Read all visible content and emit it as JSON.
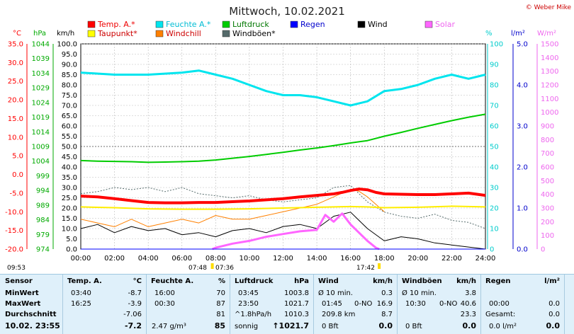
{
  "title": "Mittwoch, 10.02.2021",
  "credit": "© Weber Mike",
  "clock_left": "09:53",
  "sun_marks": {
    "rise": "07:48",
    "rise2": "07:36",
    "set": "17:42"
  },
  "legend": [
    {
      "label": "Temp. A.*",
      "color": "#ff0000"
    },
    {
      "label": "Feuchte A.*",
      "color": "#00e5ee"
    },
    {
      "label": "Luftdruck",
      "color": "#00cc00"
    },
    {
      "label": "Regen",
      "color": "#0000ff"
    },
    {
      "label": "Wind",
      "color": "#000000"
    },
    {
      "label": "Solar",
      "color": "#ff66ff"
    },
    {
      "label": "Taupunkt*",
      "color": "#ffff00"
    },
    {
      "label": "Windchill",
      "color": "#ff8000"
    },
    {
      "label": "Windböen*",
      "color": "#556b6b"
    }
  ],
  "axes": {
    "temp": {
      "unit": "°C",
      "ticks": [
        "35.0",
        "30.0",
        "25.0",
        "20.0",
        "15.0",
        "10.0",
        "5.0",
        "0.0",
        "-5.0",
        "-10.0",
        "-15.0",
        "-20.0"
      ],
      "color": "#ff0000"
    },
    "hpa": {
      "unit": "hPa",
      "ticks": [
        "1044",
        "1039",
        "1034",
        "1029",
        "1024",
        "1019",
        "1014",
        "1009",
        "1004",
        "999",
        "994",
        "989",
        "984",
        "979",
        "974"
      ],
      "color": "#00aa00"
    },
    "kmh": {
      "unit": "km/h",
      "ticks": [
        "100.0",
        "95.0",
        "90.0",
        "85.0",
        "80.0",
        "75.0",
        "70.0",
        "65.0",
        "60.0",
        "55.0",
        "50.0",
        "45.0",
        "40.0",
        "35.0",
        "30.0",
        "25.0",
        "20.0",
        "15.0",
        "10.0",
        "5.0",
        "0.0"
      ],
      "color": "#000000"
    },
    "pct": {
      "unit": "%",
      "ticks": [
        "100",
        "90",
        "80",
        "70",
        "60",
        "50",
        "40",
        "30",
        "20",
        "10",
        "0"
      ],
      "color": "#00cccc"
    },
    "rain": {
      "unit": "l/m²",
      "ticks": [
        "5.0",
        "4.0",
        "3.0",
        "2.0",
        "1.0",
        "0.0"
      ],
      "color": "#0000cc"
    },
    "solar": {
      "unit": "W/m²",
      "ticks": [
        "1500",
        "1400",
        "1300",
        "1200",
        "1100",
        "1000",
        "900",
        "800",
        "700",
        "600",
        "500",
        "400",
        "300",
        "200",
        "100",
        "0"
      ],
      "color": "#ee66ee"
    },
    "x_ticks": [
      "00:00",
      "02:00",
      "04:00",
      "06:00",
      "08:00",
      "10:00",
      "12:00",
      "14:00",
      "16:00",
      "18:00",
      "20:00",
      "22:00",
      "24:00"
    ]
  },
  "chart_data": {
    "type": "line",
    "title": "Mittwoch, 10.02.2021",
    "x_unit": "hours",
    "xlim": [
      0,
      24
    ],
    "series": [
      {
        "name": "Temp. A.*",
        "unit": "°C",
        "x": [
          0,
          1,
          2,
          3,
          4,
          5,
          6,
          7,
          8,
          9,
          10,
          11,
          12,
          13,
          14,
          15,
          15.5,
          16,
          16.5,
          17,
          17.5,
          18,
          19,
          20,
          21,
          22,
          23,
          24
        ],
        "values": [
          -5.8,
          -6.0,
          -6.5,
          -7.0,
          -7.5,
          -7.6,
          -7.6,
          -7.5,
          -7.5,
          -7.3,
          -7.1,
          -6.8,
          -6.5,
          -6.0,
          -5.6,
          -5.2,
          -4.8,
          -4.3,
          -3.9,
          -4.1,
          -4.8,
          -5.2,
          -5.3,
          -5.4,
          -5.4,
          -5.2,
          -5.0,
          -5.6
        ]
      },
      {
        "name": "Feuchte A.*",
        "unit": "%",
        "x": [
          0,
          2,
          4,
          6,
          7,
          8,
          9,
          10,
          11,
          12,
          13,
          14,
          15,
          16,
          17,
          18,
          19,
          20,
          21,
          22,
          23,
          24
        ],
        "values": [
          86,
          85,
          85,
          86,
          87,
          85,
          83,
          80,
          77,
          75,
          75,
          74,
          72,
          70,
          72,
          77,
          78,
          80,
          83,
          85,
          83,
          85
        ]
      },
      {
        "name": "Luftdruck",
        "unit": "hPa",
        "x": [
          0,
          1,
          2,
          3,
          4,
          5,
          6,
          7,
          8,
          9,
          10,
          11,
          12,
          13,
          14,
          15,
          16,
          17,
          18,
          19,
          20,
          21,
          22,
          23,
          24
        ],
        "values": [
          1004.2,
          1004.0,
          1003.9,
          1003.8,
          1003.6,
          1003.7,
          1003.8,
          1004.0,
          1004.4,
          1005.0,
          1005.6,
          1006.3,
          1007.0,
          1007.8,
          1008.5,
          1009.3,
          1010.2,
          1011.0,
          1012.5,
          1013.8,
          1015.2,
          1016.5,
          1017.8,
          1019.0,
          1020.0
        ]
      },
      {
        "name": "Taupunkt*",
        "unit": "°C",
        "x": [
          0,
          2,
          4,
          6,
          8,
          10,
          12,
          14,
          16,
          17,
          18,
          20,
          22,
          24
        ],
        "values": [
          -8.7,
          -8.9,
          -9.2,
          -9.3,
          -9.3,
          -9.2,
          -9.0,
          -8.8,
          -8.6,
          -8.7,
          -8.9,
          -8.8,
          -8.5,
          -8.7
        ]
      },
      {
        "name": "Wind",
        "unit": "km/h",
        "x": [
          0,
          1,
          2,
          3,
          4,
          5,
          6,
          7,
          8,
          9,
          10,
          11,
          12,
          13,
          14,
          15,
          16,
          17,
          18,
          19,
          20,
          21,
          22,
          23,
          24
        ],
        "values": [
          10,
          12,
          8,
          11,
          9,
          10,
          7,
          8,
          6,
          9,
          10,
          8,
          11,
          12,
          10,
          16,
          18,
          10,
          4,
          6,
          5,
          3,
          2,
          1,
          0
        ]
      },
      {
        "name": "Windchill",
        "unit": "°C",
        "x": [
          0,
          1,
          2,
          3,
          4,
          5,
          6,
          7,
          8,
          9,
          10,
          11,
          12,
          13,
          14,
          15,
          15.5,
          16,
          16.5,
          17,
          17.5,
          18
        ],
        "values": [
          -12,
          -13,
          -14,
          -12,
          -14,
          -13,
          -12,
          -13,
          -11,
          -12,
          -12,
          -11,
          -10,
          -9,
          -8,
          -6,
          -5,
          -4,
          -4.5,
          -6,
          -8,
          -10
        ]
      },
      {
        "name": "Windböen*",
        "unit": "km/h",
        "x": [
          0,
          1,
          2,
          3,
          4,
          5,
          6,
          7,
          8,
          9,
          10,
          11,
          12,
          13,
          14,
          15,
          16,
          17,
          18,
          19,
          20,
          21,
          22,
          23,
          24
        ],
        "values": [
          27,
          28,
          30,
          29,
          30,
          28,
          30,
          27,
          26,
          25,
          26,
          24,
          23,
          24,
          25,
          30,
          31,
          23,
          18,
          16,
          15,
          17,
          14,
          13,
          10
        ]
      },
      {
        "name": "Solar",
        "unit": "W/m²",
        "x": [
          7.8,
          8,
          9,
          10,
          11,
          12,
          13,
          14,
          14.5,
          15,
          15.5,
          16,
          16.5,
          17,
          17.5,
          17.7
        ],
        "values": [
          0,
          10,
          40,
          60,
          90,
          110,
          130,
          140,
          250,
          200,
          260,
          180,
          120,
          60,
          10,
          0
        ]
      },
      {
        "name": "Regen",
        "unit": "l/m²",
        "x": [
          0,
          24
        ],
        "values": [
          0,
          0
        ]
      }
    ]
  },
  "stats": {
    "sensor": {
      "header": "Sensor",
      "rows": [
        "MinWert",
        "MaxWert",
        "Durchschnitt"
      ],
      "current": "10.02. 23:55"
    },
    "temp": {
      "header": "Temp. A.",
      "unit": "°C",
      "min_time": "03:40",
      "min": "-8.7",
      "max_time": "16:25",
      "max": "-3.9",
      "avg": "-7.06",
      "current": "-7.2"
    },
    "feuchte": {
      "header": "Feuchte A.",
      "unit": "%",
      "min_time": "16:00",
      "min": "70",
      "max_time": "00:30",
      "max": "87",
      "avg": "81",
      "abs": "2.47 g/m³",
      "current": "85"
    },
    "druck": {
      "header": "Luftdruck",
      "unit": "hPa",
      "min_time": "03:45",
      "min": "1003.8",
      "max_time": "23:50",
      "max": "1021.7",
      "trend": "^1.8hPa/h",
      "avg": "1010.3",
      "state": "sonnig",
      "current": "↑1021.7"
    },
    "wind": {
      "header": "Wind",
      "unit": "km/h",
      "r1_label": "Ø 10 min.",
      "r1": "0.3",
      "r2_time": "01:45",
      "r2_dir": "0-NO",
      "r2": "16.9",
      "r3_label": "209.8 km",
      "r3": "8.7",
      "r4_label": "0 Bft",
      "current": "0.0"
    },
    "boeen": {
      "header": "Windböen",
      "unit": "km/h",
      "r1_label": "Ø 10 min.",
      "r1": "3.8",
      "r2_time": "10:30",
      "r2_dir": "0-NO",
      "r2": "40.6",
      "r3": "23.3",
      "r4_label": "0 Bft",
      "current": "0.0"
    },
    "regen": {
      "header": "Regen",
      "unit": "l/m²",
      "r2_time": "00:00",
      "r2": "0.0",
      "r3_label": "Gesamt:",
      "r3": "0.0",
      "r4_label": "0.0 l/m²",
      "current": "0.0"
    }
  }
}
